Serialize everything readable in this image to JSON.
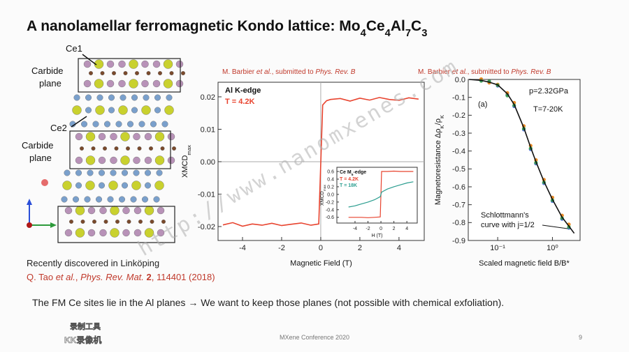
{
  "title": [
    {
      "text": "A nanolamellar ferromagnetic Kondo lattice: Mo",
      "style": "normal"
    },
    {
      "text": "4",
      "style": "sub"
    },
    {
      "text": "Ce",
      "style": "normal"
    },
    {
      "text": "4",
      "style": "sub"
    },
    {
      "text": "Al",
      "style": "normal"
    },
    {
      "text": "7",
      "style": "sub"
    },
    {
      "text": "C",
      "style": "normal"
    },
    {
      "text": "3",
      "style": "sub"
    }
  ],
  "structure": {
    "site_labels": [
      "Ce1",
      "Ce2"
    ],
    "plane_labels": [
      [
        "Carbide",
        "plane"
      ],
      [
        "Carbide",
        "plane"
      ]
    ]
  },
  "note": "Recently discovered in Linköping",
  "reference": [
    {
      "text": "Q. Tao ",
      "style": "normal"
    },
    {
      "text": "et al.",
      "style": "italic"
    },
    {
      "text": ", ",
      "style": "normal"
    },
    {
      "text": "Phys. Rev. Mat.",
      "style": "italic"
    },
    {
      "text": " ",
      "style": "normal"
    },
    {
      "text": "2",
      "style": "bold"
    },
    {
      "text": ", 114401 (2018)",
      "style": "normal"
    }
  ],
  "conclusion": "The FM Ce sites lie in the Al planes → We want to keep those planes (not possible with chemical exfoliation).",
  "footer": "MXene Conference 2020",
  "page_number": "9",
  "watermark": "http://www.nanomxenes.com",
  "recorder": [
    "录制工具",
    "KK录像机"
  ],
  "chart_data": [
    {
      "type": "line",
      "source": [
        {
          "text": "M. Barbier ",
          "style": "normal"
        },
        {
          "text": "et al.",
          "style": "italic"
        },
        {
          "text": ", submitted to ",
          "style": "normal"
        },
        {
          "text": "Phys. Rev. B",
          "style": "italic"
        }
      ],
      "title": "Al K-edge",
      "subtitle": "T = 4.2K",
      "xlabel": [
        {
          "text": "Magnetic Field (T)",
          "style": "normal"
        }
      ],
      "ylabel": [
        {
          "text": "XMCD",
          "style": "normal"
        },
        {
          "text": "max",
          "style": "sub"
        }
      ],
      "x": [
        -5,
        -4.5,
        -4,
        -3.5,
        -3,
        -2.5,
        -2,
        -1.5,
        -1,
        -0.5,
        -0.1,
        0.1,
        0.3,
        0.5,
        1,
        1.5,
        2,
        2.5,
        3,
        3.5,
        4,
        4.5,
        5
      ],
      "series": [
        {
          "color": "#e8432e",
          "values": [
            -0.0195,
            -0.0188,
            -0.0199,
            -0.0192,
            -0.0196,
            -0.019,
            -0.0197,
            -0.0193,
            -0.0189,
            -0.0196,
            -0.0192,
            0.0175,
            0.0188,
            0.0192,
            0.0195,
            0.0187,
            0.0196,
            0.019,
            0.0198,
            0.0192,
            0.0189,
            0.0197,
            0.0193
          ]
        }
      ],
      "xlim": [
        -5.25,
        5.29
      ],
      "ylim": [
        -0.0243,
        0.0245
      ],
      "xticks": [
        -4,
        -2,
        0,
        2,
        4
      ],
      "yticks": [
        0.02,
        0.01,
        {
          "value": 0,
          "label": "0.00"
        },
        -0.01,
        -0.02
      ],
      "zero_lines": true
    },
    {
      "type": "line",
      "title": [
        {
          "text": "Ce M",
          "style": "normal"
        },
        {
          "text": "5",
          "style": "sub"
        },
        {
          "text": "-edge",
          "style": "normal"
        }
      ],
      "xlabel": [
        {
          "text": "H (T)",
          "style": "normal"
        }
      ],
      "ylabel": [
        {
          "text": "XMCD",
          "style": "normal"
        },
        {
          "text": "max",
          "style": "sub"
        }
      ],
      "x": [
        -5,
        -4,
        -3,
        -2,
        -1,
        -0.1,
        0.1,
        1,
        2,
        3,
        4,
        5
      ],
      "series": [
        {
          "name": "T = 4.2K",
          "color": "#e8432e",
          "values": [
            -0.6,
            -0.6,
            -0.6,
            -0.61,
            -0.6,
            -0.59,
            0.6,
            0.6,
            0.61,
            0.6,
            0.6,
            0.6
          ]
        },
        {
          "name": "T = 18K",
          "color": "#2a9d8f",
          "values": [
            -0.33,
            -0.3,
            -0.25,
            -0.2,
            -0.14,
            -0.06,
            0.06,
            0.14,
            0.2,
            0.25,
            0.3,
            0.33
          ]
        }
      ],
      "xlim": [
        -6.8,
        5.6
      ],
      "ylim": [
        -0.75,
        0.71
      ],
      "xticks": [
        -4,
        -2,
        0,
        2,
        4
      ],
      "yticks": [
        0.6,
        0.4,
        0.2,
        {
          "value": 0,
          "label": "0.0"
        },
        -0.2,
        -0.4,
        -0.6
      ]
    },
    {
      "type": "scatter",
      "source": [
        {
          "text": "M. Barbier ",
          "style": "normal"
        },
        {
          "text": "et al.",
          "style": "italic"
        },
        {
          "text": ", submitted to ",
          "style": "normal"
        },
        {
          "text": "Phys. Rev. B",
          "style": "italic"
        }
      ],
      "panel": "(a)",
      "annotations": [
        "p=2.32GPa",
        "T=7-20K"
      ],
      "curve_label": [
        "Schlottmann's",
        "curve with j=1/2"
      ],
      "xlabel": [
        {
          "text": "Scaled magnetic field B/B*",
          "style": "normal"
        }
      ],
      "ylabel": [
        {
          "text": "Magnetoresistance Δρ",
          "style": "normal"
        },
        {
          "text": "K",
          "style": "sub"
        },
        {
          "text": "/ρ",
          "style": "normal"
        },
        {
          "text": "K",
          "style": "sub"
        }
      ],
      "xlog": true,
      "x": [
        0.03,
        0.05,
        0.07,
        0.1,
        0.15,
        0.2,
        0.3,
        0.4,
        0.5,
        0.7,
        1,
        1.5,
        2,
        2.5
      ],
      "series": [
        {
          "kind": "points",
          "color": "#3b5bdb",
          "values": [
            null,
            -0.004,
            -0.012,
            -0.035,
            -0.085,
            -0.15,
            -0.28,
            -0.39,
            -0.47,
            -0.58,
            -0.68,
            -0.78,
            -0.83,
            null
          ]
        },
        {
          "kind": "points",
          "color": "#e67700",
          "values": [
            null,
            0.002,
            -0.018,
            -0.028,
            -0.075,
            -0.13,
            -0.26,
            -0.37,
            -0.45,
            -0.56,
            -0.66,
            -0.76,
            -0.81,
            null
          ]
        },
        {
          "kind": "points",
          "color": "#2f9e44",
          "values": [
            null,
            -0.008,
            -0.01,
            -0.032,
            -0.09,
            -0.145,
            -0.275,
            -0.385,
            -0.465,
            -0.575,
            -0.675,
            -0.775,
            -0.825,
            null
          ]
        },
        {
          "kind": "line",
          "color": "#111111",
          "values": [
            0,
            -0.005,
            -0.015,
            -0.03,
            -0.08,
            -0.14,
            -0.27,
            -0.38,
            -0.46,
            -0.57,
            -0.67,
            -0.77,
            -0.82,
            -0.86
          ]
        }
      ],
      "xlim": [
        0.029,
        3.2
      ],
      "ylim": [
        -0.9,
        0
      ],
      "xticks": [
        {
          "value": 0.1,
          "label": "10⁻¹"
        },
        {
          "value": 1,
          "label": "10⁰"
        }
      ],
      "yticks": [
        {
          "value": 0,
          "label": "0.0"
        },
        -0.1,
        -0.2,
        -0.3,
        -0.4,
        -0.5,
        -0.6,
        -0.7,
        -0.8,
        -0.9
      ]
    }
  ]
}
